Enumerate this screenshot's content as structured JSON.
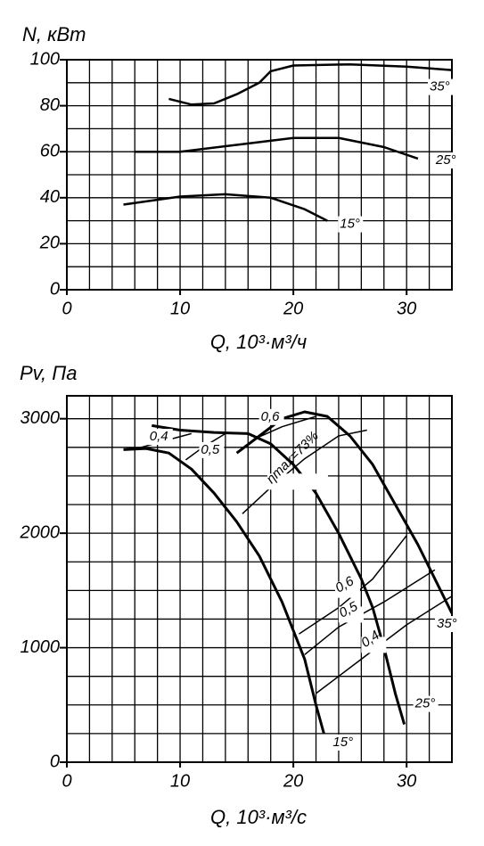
{
  "chart_data": [
    {
      "type": "line",
      "y_label": "N,  кВт",
      "x_label": "Q, 10³·м³/ч",
      "xlim": [
        0,
        34
      ],
      "xticks": [
        0,
        10,
        20,
        30
      ],
      "ylim": [
        0,
        100
      ],
      "yticks": [
        0,
        20,
        40,
        60,
        80,
        100
      ],
      "grid": true,
      "series": [
        {
          "name": "35°",
          "color": "#000000",
          "x": [
            9,
            11,
            13,
            15,
            17,
            18,
            20,
            25,
            30,
            34
          ],
          "values": [
            83,
            80.5,
            81,
            85,
            90,
            95,
            97.5,
            98,
            97,
            95.5
          ]
        },
        {
          "name": "25°",
          "color": "#000000",
          "x": [
            6,
            10,
            15,
            20,
            24,
            28,
            31
          ],
          "values": [
            60,
            60,
            63,
            66,
            66,
            62,
            57
          ]
        },
        {
          "name": "15°",
          "color": "#000000",
          "x": [
            5,
            10,
            14,
            18,
            21,
            23
          ],
          "values": [
            37,
            40.5,
            41.5,
            40,
            35,
            30
          ]
        }
      ]
    },
    {
      "type": "line",
      "y_label": "Pv,  Па",
      "x_label": "Q, 10³·м³/с",
      "xlim": [
        0,
        34
      ],
      "xticks": [
        0,
        10,
        20,
        30
      ],
      "ylim": [
        0,
        3200
      ],
      "yticks": [
        0,
        1000,
        2000,
        3000
      ],
      "grid": true,
      "series": [
        {
          "name": "15°",
          "color": "#000000",
          "x": [
            5,
            7,
            9,
            11,
            13,
            15,
            17,
            19,
            21,
            22,
            22.7
          ],
          "values": [
            2730,
            2740,
            2700,
            2560,
            2350,
            2100,
            1800,
            1400,
            900,
            500,
            250
          ]
        },
        {
          "name": "25°",
          "color": "#000000",
          "x": [
            7.5,
            10,
            13,
            16,
            18,
            20,
            22,
            24,
            26,
            27,
            28,
            29,
            29.8
          ],
          "values": [
            2940,
            2900,
            2880,
            2870,
            2780,
            2600,
            2350,
            2000,
            1600,
            1350,
            1000,
            600,
            330
          ]
        },
        {
          "name": "35°",
          "color": "#000000",
          "x": [
            15,
            17,
            19,
            21,
            23,
            25,
            27,
            29,
            31,
            33,
            34
          ],
          "values": [
            2700,
            2850,
            3000,
            3060,
            3020,
            2850,
            2600,
            2250,
            1900,
            1500,
            1300
          ]
        },
        {
          "name": "0,4",
          "color": "#000000",
          "x": [
            6.2,
            9.5,
            11
          ],
          "values": [
            2740,
            2830,
            2870
          ]
        },
        {
          "name": "0,5",
          "color": "#000000",
          "x": [
            10.5,
            12,
            14
          ],
          "values": [
            2640,
            2750,
            2870
          ]
        },
        {
          "name": "0,6",
          "color": "#000000",
          "x": [
            16.5,
            19,
            22
          ],
          "values": [
            2820,
            2930,
            3020
          ]
        },
        {
          "name": "ηmax=73%",
          "color": "#000000",
          "x": [
            15.5,
            18,
            21,
            24,
            26.5
          ],
          "values": [
            2170,
            2400,
            2650,
            2850,
            2900
          ]
        },
        {
          "name": "0,6",
          "color": "#000000",
          "x": [
            20.5,
            24,
            27,
            30
          ],
          "values": [
            1120,
            1350,
            1600,
            1980
          ]
        },
        {
          "name": "0,5",
          "color": "#000000",
          "x": [
            21,
            24,
            28,
            32.5
          ],
          "values": [
            940,
            1180,
            1400,
            1680
          ]
        },
        {
          "name": "0,4",
          "color": "#000000",
          "x": [
            22,
            26,
            30,
            34
          ],
          "values": [
            600,
            900,
            1200,
            1450
          ]
        }
      ]
    }
  ]
}
